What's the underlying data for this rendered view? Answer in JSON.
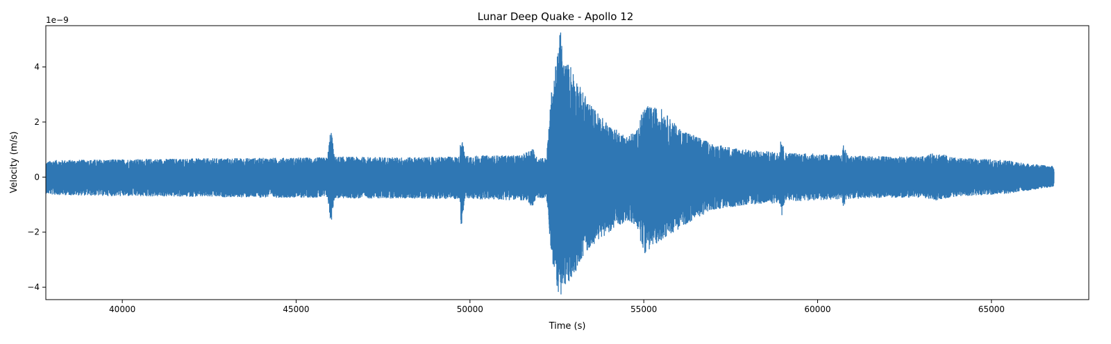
{
  "chart_data": {
    "type": "line",
    "title": "Lunar Deep Quake - Apollo 12",
    "xlabel": "Time (s)",
    "ylabel": "Velocity (m/s)",
    "y_offset_text": "1e−9",
    "y_scale": 1e-09,
    "xlim": [
      37800,
      67800
    ],
    "ylim": [
      -4.45,
      5.5
    ],
    "x_ticks": [
      40000,
      45000,
      50000,
      55000,
      60000,
      65000
    ],
    "x_tick_labels": [
      "40000",
      "45000",
      "50000",
      "55000",
      "60000",
      "65000"
    ],
    "y_ticks": [
      -4,
      -2,
      0,
      2,
      4
    ],
    "y_tick_labels": [
      "−4",
      "−2",
      "0",
      "2",
      "4"
    ],
    "grid": false,
    "series": [
      {
        "color": "#2f77b4",
        "x_range": [
          37800,
          66800
        ],
        "envelope_upper": [
          [
            37800,
            0.55
          ],
          [
            38000,
            0.62
          ],
          [
            40000,
            0.65
          ],
          [
            42000,
            0.68
          ],
          [
            44000,
            0.7
          ],
          [
            45900,
            0.72
          ],
          [
            46000,
            1.85
          ],
          [
            46100,
            0.75
          ],
          [
            48000,
            0.72
          ],
          [
            49700,
            0.75
          ],
          [
            49750,
            1.75
          ],
          [
            49850,
            0.78
          ],
          [
            51500,
            0.8
          ],
          [
            51800,
            1.1
          ],
          [
            51900,
            0.75
          ],
          [
            52200,
            0.7
          ],
          [
            52350,
            3.2
          ],
          [
            52500,
            4.3
          ],
          [
            52600,
            5.5
          ],
          [
            52700,
            4.2
          ],
          [
            52900,
            4.1
          ],
          [
            53200,
            3.2
          ],
          [
            53500,
            2.6
          ],
          [
            54000,
            1.9
          ],
          [
            54500,
            1.5
          ],
          [
            54800,
            1.7
          ],
          [
            55000,
            2.6
          ],
          [
            55500,
            2.5
          ],
          [
            56000,
            1.8
          ],
          [
            56500,
            1.5
          ],
          [
            57000,
            1.2
          ],
          [
            58000,
            1.0
          ],
          [
            58900,
            0.9
          ],
          [
            58950,
            1.65
          ],
          [
            59050,
            0.9
          ],
          [
            60000,
            0.85
          ],
          [
            60700,
            0.8
          ],
          [
            60750,
            1.25
          ],
          [
            60850,
            0.8
          ],
          [
            62000,
            0.75
          ],
          [
            63000,
            0.75
          ],
          [
            63400,
            0.9
          ],
          [
            64000,
            0.7
          ],
          [
            65000,
            0.65
          ],
          [
            65500,
            0.6
          ],
          [
            66000,
            0.5
          ],
          [
            66800,
            0.4
          ]
        ],
        "envelope_lower": [
          [
            37800,
            -0.6
          ],
          [
            38000,
            -0.65
          ],
          [
            40000,
            -0.7
          ],
          [
            42000,
            -0.72
          ],
          [
            44000,
            -0.75
          ],
          [
            45900,
            -0.75
          ],
          [
            46000,
            -1.75
          ],
          [
            46100,
            -0.78
          ],
          [
            48000,
            -0.78
          ],
          [
            49700,
            -0.8
          ],
          [
            49750,
            -1.85
          ],
          [
            49850,
            -0.8
          ],
          [
            51500,
            -0.85
          ],
          [
            51800,
            -1.1
          ],
          [
            51900,
            -0.8
          ],
          [
            52200,
            -0.75
          ],
          [
            52350,
            -3.0
          ],
          [
            52500,
            -4.0
          ],
          [
            52600,
            -4.45
          ],
          [
            52700,
            -4.1
          ],
          [
            52900,
            -3.8
          ],
          [
            53200,
            -3.0
          ],
          [
            53500,
            -2.5
          ],
          [
            54000,
            -2.0
          ],
          [
            54500,
            -1.6
          ],
          [
            54800,
            -1.8
          ],
          [
            55000,
            -2.8
          ],
          [
            55500,
            -2.3
          ],
          [
            56000,
            -1.9
          ],
          [
            56500,
            -1.5
          ],
          [
            57000,
            -1.2
          ],
          [
            58000,
            -1.0
          ],
          [
            58900,
            -0.95
          ],
          [
            58950,
            -1.6
          ],
          [
            59050,
            -0.9
          ],
          [
            60000,
            -0.85
          ],
          [
            60700,
            -0.8
          ],
          [
            60750,
            -1.2
          ],
          [
            60850,
            -0.8
          ],
          [
            62000,
            -0.75
          ],
          [
            63000,
            -0.75
          ],
          [
            63400,
            -0.85
          ],
          [
            64000,
            -0.7
          ],
          [
            65000,
            -0.65
          ],
          [
            65500,
            -0.6
          ],
          [
            66000,
            -0.5
          ],
          [
            66800,
            -0.35
          ]
        ]
      }
    ]
  }
}
